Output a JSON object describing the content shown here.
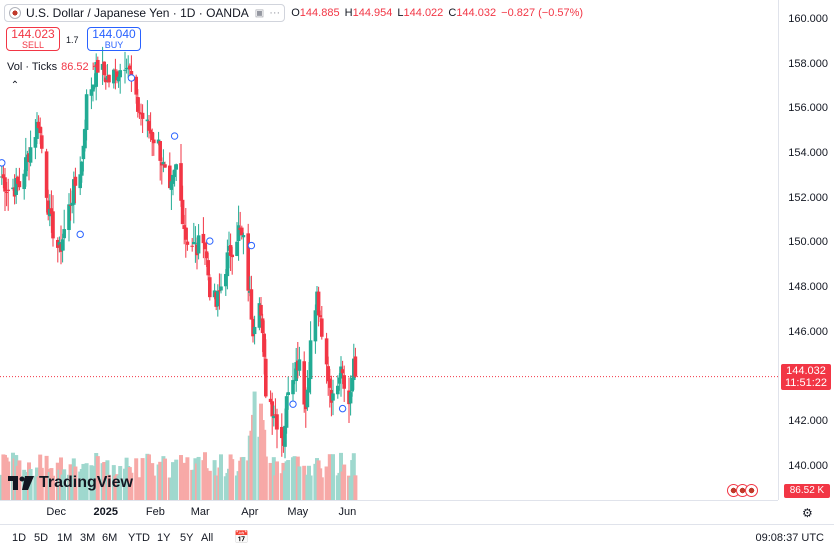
{
  "header": {
    "symbol": "U.S. Dollar / Japanese Yen · 1D · OANDA",
    "open_label": "O",
    "open": "144.885",
    "high_label": "H",
    "high": "144.954",
    "low_label": "L",
    "low": "144.022",
    "close_label": "C",
    "close": "144.032",
    "change": "−0.827 (−0.57%)"
  },
  "trade": {
    "sell_price": "144.023",
    "sell_label": "SELL",
    "spread": "1.7",
    "buy_price": "144.040",
    "buy_label": "BUY"
  },
  "volume_legend": {
    "label": "Vol · Ticks",
    "value": "86.52 K"
  },
  "current_price": {
    "price": "144.032",
    "countdown": "11:51:22"
  },
  "volume_badge": "86.52 K",
  "logo_text": "TradingView",
  "clock": "09:08:37 UTC",
  "timeframes": [
    "1D",
    "5D",
    "1M",
    "3M",
    "6M",
    "YTD",
    "1Y",
    "5Y",
    "All"
  ],
  "colors": {
    "up": "#22ab94",
    "down": "#f23645",
    "vol_up": "#9fd8ce",
    "vol_down": "#f7a9a7",
    "accent": "#2962ff"
  },
  "icons": {
    "flag": "us-jp-flag-icon",
    "settings": "gear-icon",
    "calendar": "calendar-icon",
    "collapse": "chevron-up-icon"
  },
  "chart_data": {
    "type": "candlestick",
    "price_axis": [
      "160.000",
      "158.000",
      "156.000",
      "154.000",
      "152.000",
      "150.000",
      "148.000",
      "146.000",
      "144.000",
      "142.000",
      "140.000"
    ],
    "time_axis": [
      "Dec",
      "2025",
      "Feb",
      "Mar",
      "Apr",
      "May",
      "Jun"
    ],
    "ylim": [
      138.6,
      160.8
    ],
    "anchors": [
      {
        "date": "2024-10-28",
        "close": 153.0
      },
      {
        "date": "2024-11-01",
        "close": 152.4
      },
      {
        "date": "2024-11-08",
        "close": 152.6
      },
      {
        "date": "2024-11-15",
        "close": 154.3
      },
      {
        "date": "2024-11-20",
        "close": 155.5
      },
      {
        "date": "2024-11-27",
        "close": 151.1
      },
      {
        "date": "2024-12-03",
        "close": 149.6
      },
      {
        "date": "2024-12-10",
        "close": 151.9
      },
      {
        "date": "2024-12-17",
        "close": 153.6
      },
      {
        "date": "2024-12-20",
        "close": 156.4
      },
      {
        "date": "2024-12-27",
        "close": 157.9
      },
      {
        "date": "2025-01-03",
        "close": 157.3
      },
      {
        "date": "2025-01-10",
        "close": 157.8
      },
      {
        "date": "2025-01-14",
        "close": 158.3
      },
      {
        "date": "2025-01-20",
        "close": 156.2
      },
      {
        "date": "2025-01-27",
        "close": 155.2
      },
      {
        "date": "2025-02-03",
        "close": 154.4
      },
      {
        "date": "2025-02-10",
        "close": 152.0
      },
      {
        "date": "2025-02-14",
        "close": 153.4
      },
      {
        "date": "2025-02-20",
        "close": 150.3
      },
      {
        "date": "2025-02-27",
        "close": 149.7
      },
      {
        "date": "2025-03-03",
        "close": 150.5
      },
      {
        "date": "2025-03-07",
        "close": 148.0
      },
      {
        "date": "2025-03-11",
        "close": 147.2
      },
      {
        "date": "2025-03-18",
        "close": 149.3
      },
      {
        "date": "2025-03-25",
        "close": 150.6
      },
      {
        "date": "2025-03-28",
        "close": 150.0
      },
      {
        "date": "2025-04-03",
        "close": 146.3
      },
      {
        "date": "2025-04-07",
        "close": 147.8
      },
      {
        "date": "2025-04-11",
        "close": 143.5
      },
      {
        "date": "2025-04-18",
        "close": 142.1
      },
      {
        "date": "2025-04-22",
        "close": 141.2
      },
      {
        "date": "2025-04-25",
        "close": 143.7
      },
      {
        "date": "2025-05-02",
        "close": 144.9
      },
      {
        "date": "2025-05-06",
        "close": 142.6
      },
      {
        "date": "2025-05-09",
        "close": 145.4
      },
      {
        "date": "2025-05-13",
        "close": 147.6
      },
      {
        "date": "2025-05-16",
        "close": 145.6
      },
      {
        "date": "2025-05-23",
        "close": 142.9
      },
      {
        "date": "2025-05-28",
        "close": 144.8
      },
      {
        "date": "2025-06-02",
        "close": 142.7
      },
      {
        "date": "2025-06-05",
        "close": 144.8
      },
      {
        "date": "2025-06-06",
        "close": 144.03
      }
    ]
  }
}
